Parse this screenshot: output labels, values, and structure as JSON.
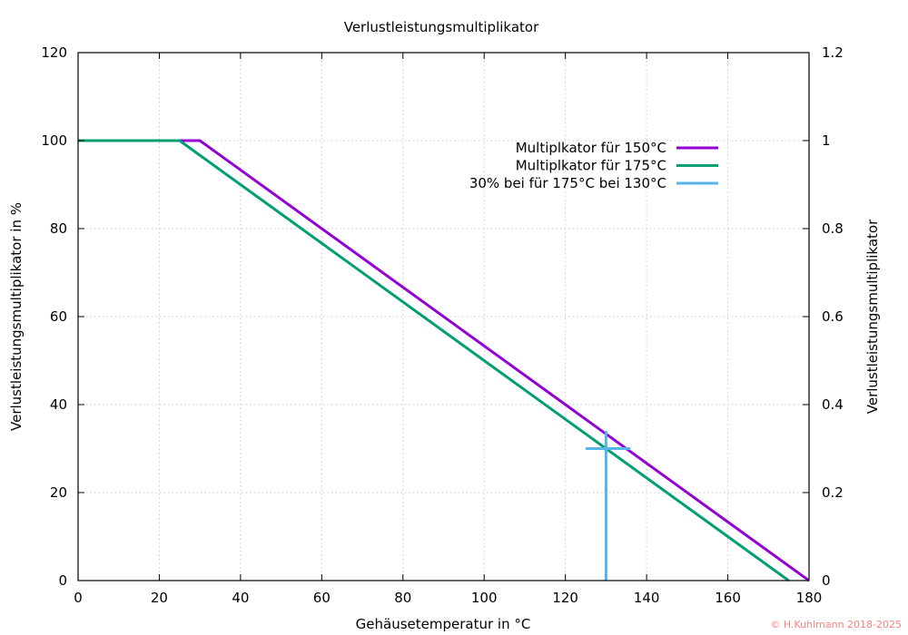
{
  "chart_data": {
    "type": "line",
    "title": "Verlustleistungsmultiplikator",
    "xlabel": "Gehäusetemperatur in °C",
    "ylabel": "Verlustleistungsmultiplikator in %",
    "y2label": "Verlustleistungsmultiplikator",
    "xlim": [
      0,
      180
    ],
    "ylim": [
      0,
      120
    ],
    "y2lim": [
      0,
      1.2
    ],
    "xticks": [
      0,
      20,
      40,
      60,
      80,
      100,
      120,
      140,
      160,
      180
    ],
    "yticks": [
      0,
      20,
      40,
      60,
      80,
      100,
      120
    ],
    "y2ticks": [
      "0",
      "0.2",
      "0.4",
      "0.6",
      "0.8",
      "1",
      "1.2"
    ],
    "grid": true,
    "legend_position": "top-right",
    "series": [
      {
        "name": "Multiplkator für 150°C",
        "color": "#9400d3",
        "points": [
          [
            0,
            100
          ],
          [
            30,
            100
          ],
          [
            180,
            0
          ]
        ]
      },
      {
        "name": "Multiplkator für 175°C",
        "color": "#009e73",
        "points": [
          [
            0,
            100
          ],
          [
            25,
            100
          ],
          [
            175,
            0
          ]
        ]
      },
      {
        "name": "30% bei für 175°C bei 130°C",
        "color": "#56b4e9",
        "segments": [
          [
            [
              130,
              0
            ],
            [
              130,
              34
            ]
          ],
          [
            [
              125,
              30
            ],
            [
              136,
              30
            ]
          ]
        ]
      }
    ]
  },
  "copyright": "© H.Kuhlmann 2018-2025",
  "copyright_color": "#ff8080"
}
